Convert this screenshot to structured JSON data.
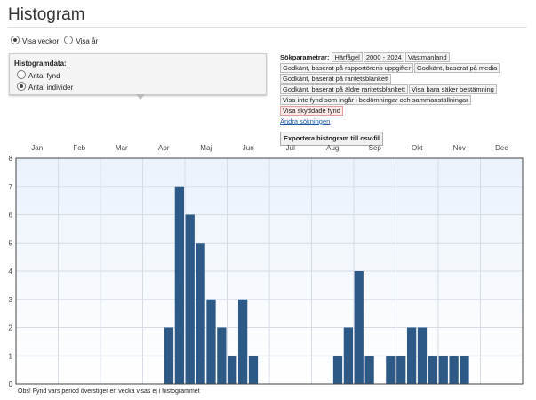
{
  "title": "Histogram",
  "view_options": [
    {
      "label": "Visa veckor",
      "selected": true
    },
    {
      "label": "Visa år",
      "selected": false
    }
  ],
  "histogram_data": {
    "heading": "Histogramdata:",
    "options": [
      {
        "label": "Antal fynd",
        "selected": false
      },
      {
        "label": "Antal individer",
        "selected": true
      }
    ]
  },
  "params": {
    "label": "Sökparametrar:",
    "tags": [
      {
        "text": "Härfågel"
      },
      {
        "text": "2000 - 2024"
      },
      {
        "text": "Västmanland"
      },
      {
        "text": "Godkänt, baserat på rapportörens uppgifter"
      },
      {
        "text": "Godkänt, baserat på media"
      },
      {
        "text": "Godkänt, baserat på raritetsblankett"
      },
      {
        "text": "Godkänt, baserat på äldre raritetsblankett"
      },
      {
        "text": "Visa bara säker bestämning"
      },
      {
        "text": "Visa inte fynd som ingår i bedömningar och sammanställningar"
      },
      {
        "text": "Visa skyddade fynd",
        "warn": true
      }
    ],
    "change_link": "Ändra sökningen",
    "export_label": "Exportera histogram till csv-fil"
  },
  "note": "Obs! Fynd vars period överstiger en vecka visas ej i histogrammet",
  "colors": {
    "bar": "#2d5986"
  },
  "chart_data": {
    "type": "bar",
    "months": [
      "Jan",
      "Feb",
      "Mar",
      "Apr",
      "Maj",
      "Jun",
      "Jul",
      "Aug",
      "Sep",
      "Okt",
      "Nov",
      "Dec"
    ],
    "bins_per_month": 4,
    "values": [
      0,
      0,
      0,
      0,
      0,
      0,
      0,
      0,
      0,
      0,
      0,
      0,
      0,
      0,
      2,
      7,
      6,
      5,
      3,
      2,
      1,
      3,
      1,
      0,
      0,
      0,
      0,
      0,
      0,
      0,
      1,
      2,
      4,
      1,
      0,
      1,
      1,
      2,
      2,
      1,
      1,
      1,
      1,
      0,
      0,
      0,
      0,
      0
    ],
    "ylim": [
      0,
      8
    ],
    "yticks": [
      0,
      1,
      2,
      3,
      4,
      5,
      6,
      7,
      8
    ],
    "grid": true
  }
}
